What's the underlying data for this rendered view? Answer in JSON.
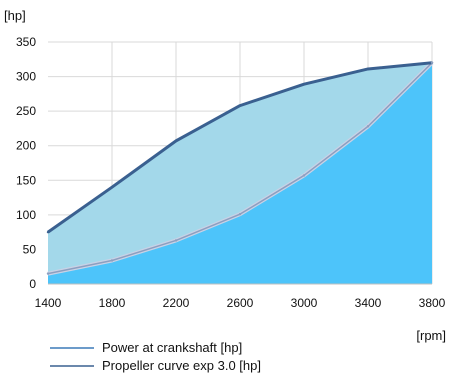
{
  "chart_data": {
    "type": "area",
    "title": "",
    "y_unit_label": "[hp]",
    "x_unit_label": "[rpm]",
    "x": [
      1400,
      1800,
      2200,
      2600,
      3000,
      3400,
      3800
    ],
    "x_tick_labels": [
      "1400",
      "1800",
      "2200",
      "2600",
      "3000",
      "3400",
      "3800"
    ],
    "y_ticks": [
      0,
      50,
      100,
      150,
      200,
      250,
      300,
      350
    ],
    "y_tick_labels": [
      "0",
      "50",
      "100",
      "150",
      "200",
      "250",
      "300",
      "350"
    ],
    "xlim": [
      1400,
      3800
    ],
    "ylim": [
      0,
      350
    ],
    "grid": true,
    "legend_position": "bottom",
    "series": [
      {
        "name": "Power at crankshaft [hp]",
        "values": [
          75,
          140,
          207,
          258,
          289,
          311,
          320
        ],
        "line_color": "#3a6090",
        "fill_color": "#a3d8ea"
      },
      {
        "name": "Propeller curve exp 3.0 [hp]",
        "values": [
          15,
          34,
          63,
          101,
          157,
          228,
          320
        ],
        "line_color": "#8c9fc0",
        "fill_color": "#4dc4fa"
      }
    ],
    "legend_line_colors": [
      "#3c7ab8",
      "#3a6090"
    ]
  }
}
